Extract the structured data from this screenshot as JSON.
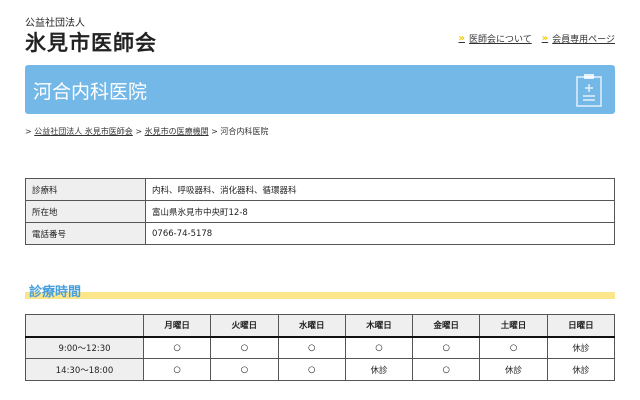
{
  "header": {
    "org_type": "公益社団法人",
    "org_name": "氷見市医師会",
    "nav": [
      {
        "label": "医師会について",
        "icon": "double-chevron-right-icon"
      },
      {
        "label": "会員専用ページ",
        "icon": "double-chevron-right-icon"
      }
    ]
  },
  "banner": {
    "title": "河合内科医院",
    "icon": "clipboard-medical-icon",
    "color": "#74b8e8"
  },
  "breadcrumb": [
    {
      "label": "公益社団法人 氷見市医師会"
    },
    {
      "label": "氷見市の医療機関"
    },
    {
      "label": "河合内科医院"
    }
  ],
  "info": [
    {
      "label": "診療科",
      "value": "内科、呼吸器科、消化器科、循環器科"
    },
    {
      "label": "所在地",
      "value": "富山県氷見市中央町12-8"
    },
    {
      "label": "電話番号",
      "value": "0766-74-5178"
    }
  ],
  "hours": {
    "heading": "診療時間",
    "days": [
      "月曜日",
      "火曜日",
      "水曜日",
      "木曜日",
      "金曜日",
      "土曜日",
      "日曜日"
    ],
    "rows": [
      {
        "time": "9:00～12:30",
        "cells": [
          "○",
          "○",
          "○",
          "○",
          "○",
          "○",
          "休診"
        ]
      },
      {
        "time": "14:30～18:00",
        "cells": [
          "○",
          "○",
          "○",
          "休診",
          "○",
          "休診",
          "休診"
        ]
      }
    ]
  }
}
